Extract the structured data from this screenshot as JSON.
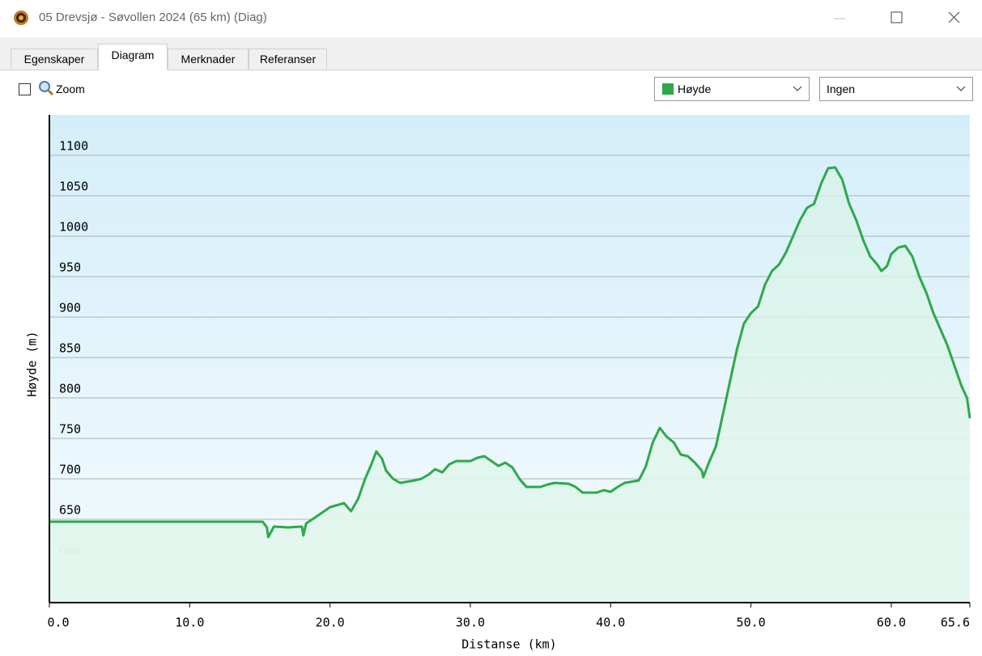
{
  "window": {
    "title": "05 Drevsjø - Søvollen 2024 (65 km) (Diag)"
  },
  "tabs": [
    "Egenskaper",
    "Diagram",
    "Merknader",
    "Referanser"
  ],
  "toolbar": {
    "zoom": "Zoom",
    "compare_select": "Ingen"
  },
  "chart_data": {
    "type": "line",
    "xlabel": "Distanse  (km)",
    "ylabel": "Høyde (m)",
    "x": [
      0,
      15.2,
      15.5,
      15.6,
      16,
      17,
      18,
      18.1,
      18.3,
      19,
      20,
      21,
      21.5,
      22,
      22.5,
      23,
      23.3,
      23.7,
      24,
      24.5,
      25,
      26,
      26.5,
      27,
      27.5,
      28,
      28.5,
      29,
      30,
      30.5,
      31,
      31.5,
      32,
      32.5,
      33,
      33.5,
      34,
      35,
      35.5,
      36,
      37,
      37.5,
      38,
      39,
      39.5,
      40,
      40.5,
      41,
      42,
      42.5,
      43,
      43.5,
      44,
      44.5,
      45,
      45.5,
      46,
      46.5,
      46.6,
      47,
      47.5,
      48,
      48.5,
      49,
      49.5,
      50,
      50.5,
      51,
      51.5,
      52,
      52.5,
      53,
      53.5,
      54,
      54.5,
      55,
      55.5,
      56,
      56.5,
      57,
      57.5,
      58,
      58.5,
      59,
      59.3,
      59.7,
      60,
      60.5,
      61,
      61.5,
      62,
      62.5,
      63,
      63.5,
      64,
      64.5,
      65,
      65.4,
      65.6
    ],
    "series": [
      {
        "name": "Høyde",
        "color": "#2ea84c",
        "values": [
          647,
          647,
          640,
          628,
          641,
          640,
          641,
          630,
          645,
          653,
          665,
          670,
          660,
          675,
          700,
          720,
          734,
          725,
          710,
          700,
          695,
          698,
          700,
          705,
          712,
          708,
          718,
          722,
          722,
          726,
          728,
          722,
          716,
          720,
          714,
          700,
          690,
          690,
          693,
          695,
          694,
          690,
          683,
          683,
          686,
          684,
          690,
          695,
          698,
          715,
          745,
          763,
          752,
          745,
          730,
          728,
          720,
          710,
          702,
          720,
          740,
          780,
          820,
          860,
          892,
          905,
          913,
          940,
          957,
          965,
          980,
          1000,
          1020,
          1035,
          1040,
          1065,
          1084,
          1085,
          1070,
          1040,
          1020,
          995,
          975,
          965,
          957,
          963,
          978,
          986,
          988,
          975,
          950,
          930,
          905,
          885,
          865,
          840,
          815,
          800,
          775
        ]
      }
    ],
    "xlim": [
      0,
      65.6
    ],
    "ylim": [
      547,
      1150
    ],
    "xticks": [
      {
        "value": 0,
        "label": "0.0"
      },
      {
        "value": 10,
        "label": "10.0"
      },
      {
        "value": 20,
        "label": "20.0"
      },
      {
        "value": 30,
        "label": "30.0"
      },
      {
        "value": 40,
        "label": "40.0"
      },
      {
        "value": 50,
        "label": "50.0"
      },
      {
        "value": 60,
        "label": "60.0"
      },
      65.6
    ],
    "yticks": [
      600,
      650,
      700,
      750,
      800,
      850,
      900,
      950,
      1000,
      1050,
      1100
    ],
    "grid": true
  }
}
